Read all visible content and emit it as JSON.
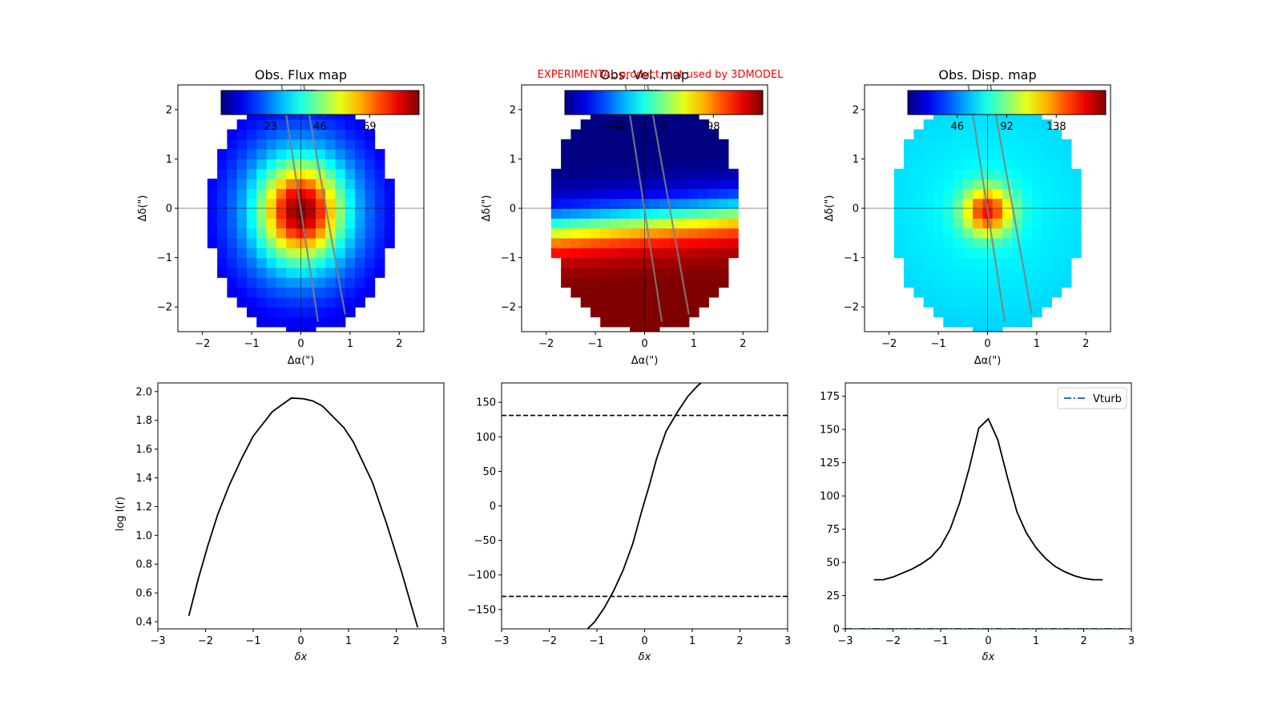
{
  "header": {
    "note": "EXPERIMENTAL product, not used by 3DMODEL",
    "note_color": "#ff0000"
  },
  "colors": {
    "profile_line": "#000000",
    "slit_line": "#808080",
    "vturb_line": "#1f77b4",
    "axis": "#000000"
  },
  "chart_data": [
    {
      "type": "heatmap",
      "title": "Obs. Flux map",
      "xlabel": "Δα(\")",
      "ylabel": "Δδ(\")",
      "xlim": [
        -2.5,
        2.5
      ],
      "ylim": [
        -2.5,
        2.5
      ],
      "xticks": [
        -2,
        -1,
        0,
        1,
        2
      ],
      "yticks": [
        -2,
        -1,
        0,
        1,
        2
      ],
      "colormap": "jet",
      "colorbar": {
        "range": [
          0,
          92
        ],
        "ticks": [
          23,
          46,
          69
        ],
        "placement": "top"
      },
      "peak": 92,
      "core_sigma": 0.55,
      "halo_amp": 0.35,
      "halo_sigma": 1.3,
      "mask": {
        "center": [
          0,
          -0.1
        ],
        "semi_axes": [
          1.9,
          2.45
        ]
      }
    },
    {
      "type": "heatmap",
      "title": "Obs. Vel. map",
      "xlabel": "Δα(\")",
      "ylabel": "Δδ(\")",
      "xlim": [
        -2.5,
        2.5
      ],
      "ylim": [
        -2.5,
        2.5
      ],
      "xticks": [
        -2,
        -1,
        0,
        1,
        2
      ],
      "yticks": [
        -2,
        -1,
        0,
        1,
        2
      ],
      "colormap": "jet",
      "colorbar": {
        "range": [
          -196,
          196
        ],
        "ticks": [
          -98,
          0,
          98
        ],
        "placement": "top"
      },
      "vmax": 200,
      "pa_degrees": 165,
      "rscale": 0.45,
      "yshift": -0.25,
      "mask": {
        "center": [
          0,
          -0.1
        ],
        "semi_axes": [
          1.95,
          2.45
        ]
      }
    },
    {
      "type": "heatmap",
      "title": "Obs. Disp. map",
      "xlabel": "Δα(\")",
      "ylabel": "Δδ(\")",
      "xlim": [
        -2.5,
        2.5
      ],
      "ylim": [
        -2.5,
        2.5
      ],
      "xticks": [
        -2,
        -1,
        0,
        1,
        2
      ],
      "yticks": [
        -2,
        -1,
        0,
        1,
        2
      ],
      "colormap": "jet",
      "colorbar": {
        "range": [
          0,
          184
        ],
        "ticks": [
          46,
          92,
          138
        ],
        "placement": "top"
      },
      "base": 68,
      "peak": 160,
      "core_sigma": 0.35,
      "falloff": 0.018,
      "mask": {
        "center": [
          0,
          -0.1
        ],
        "semi_axes": [
          1.95,
          2.45
        ]
      }
    },
    {
      "type": "line",
      "xlabel": "δx",
      "ylabel": "log I(r)",
      "xlim": [
        -3,
        3
      ],
      "ylim": [
        0.35,
        2.06
      ],
      "xticks": [
        -3,
        -2,
        -1,
        0,
        1,
        2,
        3
      ],
      "yticks": [
        0.4,
        0.6,
        0.8,
        1.0,
        1.2,
        1.4,
        1.6,
        1.8,
        2.0
      ],
      "ytick_labels": [
        "0.4",
        "0.6",
        "0.8",
        "1.0",
        "1.2",
        "1.4",
        "1.6",
        "1.8",
        "2.0"
      ],
      "series": [
        {
          "x": [
            -2.35,
            -2.15,
            -1.95,
            -1.75,
            -1.5,
            -1.25,
            -1.0,
            -0.6,
            -0.2,
            0.05,
            0.25,
            0.45,
            0.9,
            1.1,
            1.5,
            1.8,
            2.1,
            2.45
          ],
          "y": [
            0.44,
            0.7,
            0.93,
            1.14,
            1.35,
            1.53,
            1.69,
            1.86,
            1.955,
            1.95,
            1.935,
            1.9,
            1.75,
            1.65,
            1.37,
            1.08,
            0.76,
            0.36
          ]
        }
      ]
    },
    {
      "type": "line",
      "xlabel": "δx",
      "xlim": [
        -3,
        3
      ],
      "ylim": [
        -178,
        178
      ],
      "xticks": [
        -3,
        -2,
        -1,
        0,
        1,
        2,
        3
      ],
      "yticks": [
        -150,
        -100,
        -50,
        0,
        50,
        100,
        150
      ],
      "ytick_labels": [
        "−150",
        "−100",
        "−50",
        "0",
        "50",
        "100",
        "150"
      ],
      "hlines": [
        131,
        -131
      ],
      "series": [
        {
          "x": [
            -1.3,
            -1.05,
            -0.85,
            -0.65,
            -0.45,
            -0.25,
            -0.05,
            0.1,
            0.25,
            0.45,
            0.7,
            0.9,
            1.1,
            1.25
          ],
          "y": [
            -185,
            -168,
            -148,
            -123,
            -93,
            -55,
            -5,
            30,
            68,
            108,
            137,
            158,
            173,
            182
          ]
        }
      ]
    },
    {
      "type": "line",
      "xlabel": "δx",
      "xlim": [
        -3,
        3
      ],
      "ylim": [
        0,
        185
      ],
      "xticks": [
        -3,
        -2,
        -1,
        0,
        1,
        2,
        3
      ],
      "yticks": [
        0,
        25,
        50,
        75,
        100,
        125,
        150,
        175
      ],
      "ytick_labels": [
        "0",
        "25",
        "50",
        "75",
        "100",
        "125",
        "150",
        "175"
      ],
      "legend": {
        "entries": [
          "Vturb"
        ],
        "placement": "top-right"
      },
      "series": [
        {
          "x": [
            -2.4,
            -2.2,
            -2.0,
            -1.8,
            -1.6,
            -1.4,
            -1.2,
            -1.0,
            -0.8,
            -0.6,
            -0.4,
            -0.2,
            0.0,
            0.2,
            0.4,
            0.6,
            0.8,
            1.0,
            1.2,
            1.4,
            1.6,
            1.8,
            2.0,
            2.2,
            2.4
          ],
          "y": [
            37,
            37,
            39,
            42,
            45,
            49,
            54,
            62,
            75,
            95,
            121,
            151,
            158,
            142,
            114,
            88,
            72,
            61,
            53,
            47,
            43,
            40,
            38,
            37,
            37
          ]
        },
        {
          "name": "Vturb",
          "x": [
            -3,
            3
          ],
          "y": [
            0,
            0
          ]
        }
      ]
    }
  ]
}
